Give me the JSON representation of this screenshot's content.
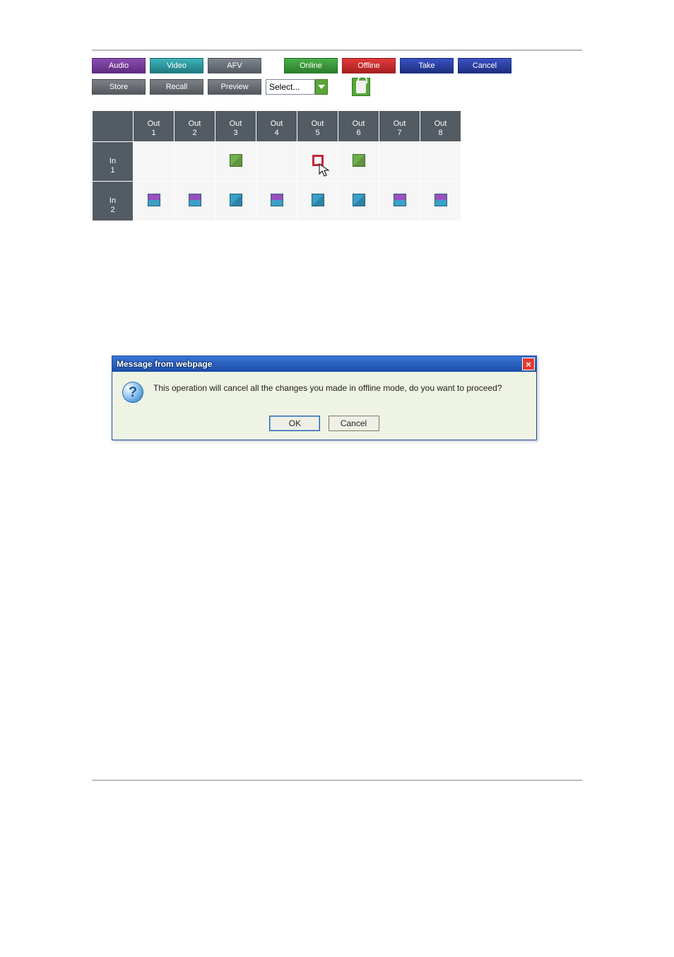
{
  "colors": {
    "purple": "#7a3ca0",
    "teal": "#2d9aa0",
    "gray": "#6b727a",
    "green": "#3a9a3a",
    "red": "#cc2a2a",
    "blue": "#2a3fa5",
    "header_gray": "#535b63",
    "cell_bg": "#f6f6f6",
    "dialog_bg": "#eef3e4",
    "titlebar_from": "#3a75d6",
    "titlebar_to": "#1a4ca5",
    "tile_green": "#6fb04a",
    "tile_blue": "#3aa0c7",
    "tile_purple": "#9b4fbf",
    "outline_red": "#c22a3a"
  },
  "toolbar_top": {
    "audio": "Audio",
    "video": "Video",
    "afv": "AFV",
    "online": "Online",
    "offline": "Offline",
    "take": "Take",
    "cancel": "Cancel"
  },
  "toolbar_bottom": {
    "store": "Store",
    "recall": "Recall",
    "preview": "Preview",
    "select_value": "Select...",
    "lock_title": "Lock"
  },
  "matrix": {
    "col_prefix": "Out",
    "row_prefix": "In",
    "columns": [
      "1",
      "2",
      "3",
      "4",
      "5",
      "6",
      "7",
      "8"
    ],
    "rows": [
      "1",
      "2"
    ],
    "cells": [
      [
        null,
        null,
        "green",
        null,
        "outline-cursor",
        "green",
        null,
        null
      ],
      [
        "split",
        "split",
        "blue",
        "split",
        "blue",
        "blue",
        "split",
        "split"
      ]
    ]
  },
  "dialog": {
    "title": "Message from webpage",
    "message": "This operation will cancel all the changes you made in offline mode, do you want to proceed?",
    "ok": "OK",
    "cancel": "Cancel"
  }
}
